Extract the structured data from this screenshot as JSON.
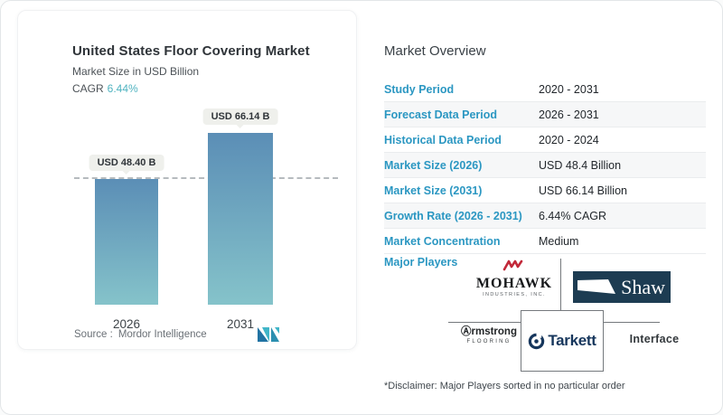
{
  "chart_card": {
    "title": "United States Floor Covering Market",
    "subtitle": "Market Size in USD Billion",
    "cagr_label": "CAGR",
    "cagr_value": "6.44%",
    "source_label": "Source :",
    "source_value": "Mordor Intelligence"
  },
  "chart_data": {
    "type": "bar",
    "categories": [
      "2026",
      "2031"
    ],
    "values": [
      48.4,
      66.14
    ],
    "data_labels": [
      "USD 48.40 B",
      "USD 66.14 B"
    ],
    "title": "United States Floor Covering Market",
    "ylabel": "Market Size in USD Billion",
    "unit": "USD Billion",
    "ylim": [
      0,
      70
    ],
    "grid": false,
    "legend": false,
    "reference_line_at": 48.4,
    "bar_color_top": "#5b8eb6",
    "bar_color_bottom": "#85c3ca"
  },
  "overview": {
    "heading": "Market Overview",
    "rows": [
      {
        "label": "Study Period",
        "value": "2020 - 2031"
      },
      {
        "label": "Forecast Data Period",
        "value": "2026 - 2031"
      },
      {
        "label": "Historical Data Period",
        "value": "2020 - 2024"
      },
      {
        "label": "Market Size (2026)",
        "value": "USD 48.4 Billion"
      },
      {
        "label": "Market Size (2031)",
        "value": "USD 66.14 Billion"
      },
      {
        "label": "Growth Rate (2026 - 2031)",
        "value": "6.44% CAGR"
      },
      {
        "label": "Market Concentration",
        "value": "Medium"
      }
    ],
    "major_players_label": "Major Players",
    "disclaimer": "*Disclaimer: Major Players sorted in no particular order"
  },
  "players": {
    "mohawk_name": "MOHAWK",
    "mohawk_sub": "INDUSTRIES, INC.",
    "shaw_name": "Shaw",
    "armstrong_name": "Ⓐrmstrong",
    "armstrong_sub": "FLOORING",
    "tarkett_name": "Tarkett",
    "interface_name": "Interface"
  },
  "colors": {
    "accent_blue": "#2b97c2",
    "teal": "#4fb3c0",
    "bar_top": "#5b8eb6",
    "bar_bottom": "#85c3ca",
    "shaw_navy": "#1d3c52",
    "tarkett_navy": "#16365c",
    "mohawk_red": "#c2293a"
  }
}
